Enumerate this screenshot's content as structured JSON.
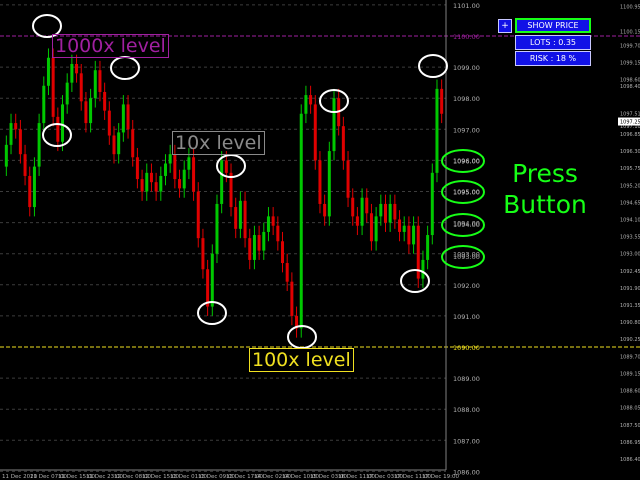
{
  "panel": {
    "plus_label": "+",
    "show_price_label": "SHOW PRICE",
    "lots_label": "LOTS : 0.35",
    "risk_label": "RISK : 18 %"
  },
  "annotations": {
    "level_1000": "1000x level",
    "level_10": "10x level",
    "level_100": "100x level",
    "press_line1": "Press",
    "press_line2": "Button"
  },
  "colors": {
    "background": "#000000",
    "bull_candle": "#00c800",
    "bear_candle": "#e00000",
    "grid": "#3c3c3c",
    "level_1000": "#a020a0",
    "level_100": "#f0e020",
    "level_10": "#8a8a8a",
    "circle": "#ffffff",
    "press_button": "#17ff17",
    "buttons_bg": "#1212e6"
  },
  "chart_data": {
    "type": "candlestick",
    "symbol_hint": "",
    "price_axis_labels": [
      "1101.00",
      "1100.00",
      "1099.00",
      "1098.00",
      "1097.00",
      "1096.00",
      "1095.00",
      "1094.00",
      "1093.00",
      "1092.00",
      "1091.00",
      "1090.00",
      "1089.00",
      "1088.00",
      "1087.00",
      "1086.00"
    ],
    "price_axis_small_labels": [
      "1100.95",
      "1100.15",
      "1099.70",
      "1099.15",
      "1098.60",
      "1098.40",
      "1097.51",
      "1097.10",
      "1096.85",
      "1096.30",
      "1095.75",
      "1095.20",
      "1094.65",
      "1094.10",
      "1093.55",
      "1093.00",
      "1092.45",
      "1091.90",
      "1091.35",
      "1090.80",
      "1090.25",
      "1089.70",
      "1089.15",
      "1088.60",
      "1088.05",
      "1087.50",
      "1086.95",
      "1086.40"
    ],
    "price_axis_highlight": {
      "level_1000": "1100.00",
      "level_100": "1090.00",
      "current": "1097.25"
    },
    "time_labels": [
      "11 Dec 2020",
      "11 Dec 07:00",
      "11 Dec 15:00",
      "11 Dec 23:00",
      "12 Dec 08:00",
      "12 Dec 15:00",
      "13 Dec 01:00",
      "13 Dec 09:00",
      "13 Dec 17:00",
      "14 Dec 02:00",
      "14 Dec 10:00",
      "15 Dec 03:00",
      "16 Dec 11:00",
      "17 Dec 03:00",
      "17 Dec 11:00",
      "17 Dec 19:00"
    ],
    "levels": [
      {
        "name": "1000x",
        "price": 1100.0
      },
      {
        "name": "100x",
        "price": 1090.0
      }
    ],
    "candles_close": [
      1096.5,
      1097.2,
      1097.0,
      1096.2,
      1095.5,
      1094.5,
      1095.8,
      1097.2,
      1098.4,
      1099.3,
      1097.4,
      1096.6,
      1097.8,
      1098.5,
      1099.1,
      1098.8,
      1097.9,
      1097.2,
      1098.0,
      1098.9,
      1098.2,
      1097.6,
      1096.8,
      1096.2,
      1096.9,
      1097.8,
      1097.0,
      1096.1,
      1095.4,
      1095.0,
      1095.6,
      1095.3,
      1095.0,
      1095.5,
      1095.9,
      1096.2,
      1095.4,
      1095.1,
      1095.7,
      1096.1,
      1095.0,
      1093.5,
      1092.5,
      1091.3,
      1093.0,
      1094.6,
      1096.0,
      1095.6,
      1094.5,
      1093.8,
      1094.7,
      1093.5,
      1092.8,
      1093.6,
      1093.1,
      1093.7,
      1094.2,
      1093.9,
      1093.4,
      1092.7,
      1092.1,
      1091.0,
      1090.6,
      1097.5,
      1098.1,
      1097.8,
      1096.0,
      1094.6,
      1094.2,
      1096.3,
      1098.0,
      1097.1,
      1096.0,
      1094.8,
      1094.2,
      1093.9,
      1094.8,
      1094.3,
      1093.4,
      1094.2,
      1094.6,
      1094.0,
      1094.6,
      1094.1,
      1093.7,
      1093.9,
      1093.3,
      1093.9,
      1092.2,
      1092.8,
      1093.6,
      1095.6,
      1098.3,
      1097.5
    ]
  }
}
